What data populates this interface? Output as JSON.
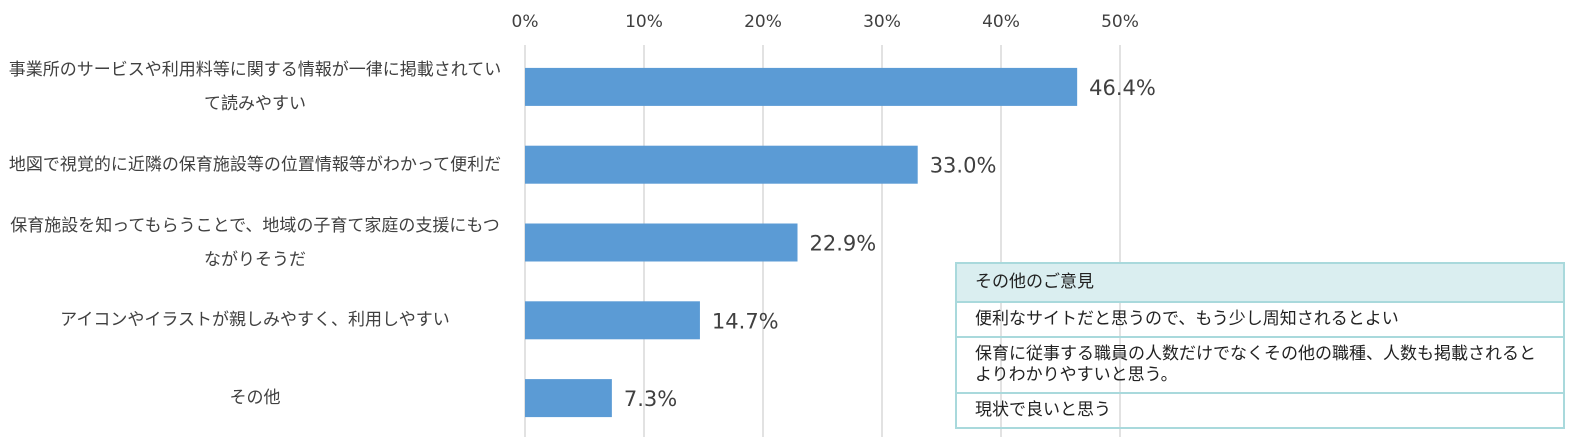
{
  "chart_data": {
    "type": "bar",
    "orientation": "horizontal",
    "categories": [
      "事業所のサービスや利用料等に関する情報が一律に掲載されていて読みやすい",
      "地図で視覚的に近隣の保育施設等の位置情報等がわかって便利だ",
      "保育施設を知ってもらうことで、地域の子育て家庭の支援にもつながりそうだ",
      "アイコンやイラストが親しみやすく、利用しやすい",
      "その他"
    ],
    "values": [
      46.4,
      33.0,
      22.9,
      14.7,
      7.3
    ],
    "value_labels": [
      "46.4%",
      "33.0%",
      "22.9%",
      "14.7%",
      "7.3%"
    ],
    "color": "#5b9bd5",
    "xlim": [
      0,
      50
    ],
    "xticks": [
      {
        "value": 0,
        "label": "0%"
      },
      {
        "value": 10,
        "label": "10%"
      },
      {
        "value": 20,
        "label": "20%"
      },
      {
        "value": 30,
        "label": "30%"
      },
      {
        "value": 40,
        "label": "40%"
      },
      {
        "value": 50,
        "label": "50%"
      }
    ],
    "grid": true
  },
  "table": {
    "title": "その他のご意見",
    "rows": [
      "便利なサイトだと思うので、もう少し周知されるとよい",
      "保育に従事する職員の人数だけでなくその他の職種、人数も掲載されるとよりわかりやすいと思う。",
      "現状で良いと思う"
    ]
  }
}
